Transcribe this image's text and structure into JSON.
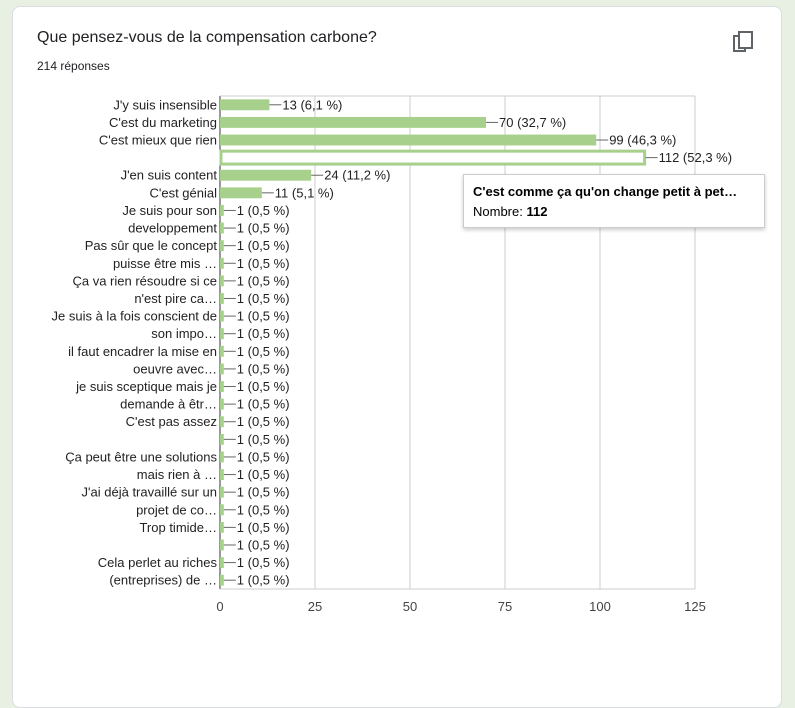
{
  "header": {
    "title": "Que pensez-vous de la compensation carbone?",
    "response_count": "214 réponses",
    "copy_icon": "copy-icon"
  },
  "chart_data": {
    "type": "bar",
    "orientation": "horizontal",
    "categories": [
      "J'y suis insensible",
      "C'est du marketing",
      "C'est mieux que rien",
      "C'est comme ça qu'on change petit à pet…",
      "J'en suis content",
      "C'est génial",
      "Je suis pour son developpement",
      "",
      "Pas sûr que le concept puisse être mis …",
      "",
      "Ça va rien résoudre si ce n'est pire ca…",
      "",
      "Je suis à la fois conscient de son impo…",
      "",
      "il faut encadrer la mise en oeuvre avec…",
      "",
      "je suis sceptique mais je demande à êtr…",
      "",
      "C'est pas assez",
      "",
      "Ça peut être une solutions mais rien à …",
      "",
      "J'ai déjà travaillé sur un projet de co…",
      "",
      "Trop timide…",
      "",
      "Cela perlet au riches (entreprises) de …",
      ""
    ],
    "axis_labels": [
      [
        "J'y suis insensible"
      ],
      [
        "C'est du marketing"
      ],
      [
        "C'est mieux que rien"
      ],
      [],
      [
        "J'en suis content"
      ],
      [
        "C'est génial"
      ],
      [
        "Je suis pour son",
        "developpement"
      ],
      [],
      [
        "Pas sûr que le concept",
        "puisse être mis …"
      ],
      [],
      [
        "Ça va rien résoudre si ce",
        "n'est pire ca…"
      ],
      [],
      [
        "Je suis à la fois conscient de",
        "son impo…"
      ],
      [],
      [
        "il faut encadrer la mise en",
        "oeuvre avec…"
      ],
      [],
      [
        "je suis sceptique mais je",
        "demande à êtr…"
      ],
      [],
      [
        "C'est pas assez"
      ],
      [],
      [
        "Ça peut être une solutions",
        "mais rien à …"
      ],
      [],
      [
        "J'ai déjà travaillé sur un",
        "projet de co…"
      ],
      [],
      [
        "Trop timide…"
      ],
      [],
      [
        "Cela perlet au riches",
        "(entreprises) de …"
      ],
      []
    ],
    "values": [
      13,
      70,
      99,
      112,
      24,
      11,
      1,
      1,
      1,
      1,
      1,
      1,
      1,
      1,
      1,
      1,
      1,
      1,
      1,
      1,
      1,
      1,
      1,
      1,
      1,
      1,
      1,
      1
    ],
    "value_labels": [
      "13 (6,1 %)",
      "70 (32,7 %)",
      "99 (46,3 %)",
      "112 (52,3 %)",
      "24 (11,2 %)",
      "11 (5,1 %)",
      "1 (0,5 %)",
      "1 (0,5 %)",
      "1 (0,5 %)",
      "1 (0,5 %)",
      "1 (0,5 %)",
      "1 (0,5 %)",
      "1 (0,5 %)",
      "1 (0,5 %)",
      "1 (0,5 %)",
      "1 (0,5 %)",
      "1 (0,5 %)",
      "1 (0,5 %)",
      "1 (0,5 %)",
      "1 (0,5 %)",
      "1 (0,5 %)",
      "1 (0,5 %)",
      "1 (0,5 %)",
      "1 (0,5 %)",
      "1 (0,5 %)",
      "1 (0,5 %)",
      "1 (0,5 %)",
      "1 (0,5 %)"
    ],
    "highlighted_index": 3,
    "xlim": [
      0,
      125
    ],
    "xticks": [
      0,
      25,
      50,
      75,
      100,
      125
    ],
    "grid": true,
    "bar_color": "#a8d08d",
    "highlight_color": "#ffffff"
  },
  "tooltip": {
    "title": "C'est comme ça qu'on change petit à pet…",
    "label": "Nombre: ",
    "value": "112"
  }
}
